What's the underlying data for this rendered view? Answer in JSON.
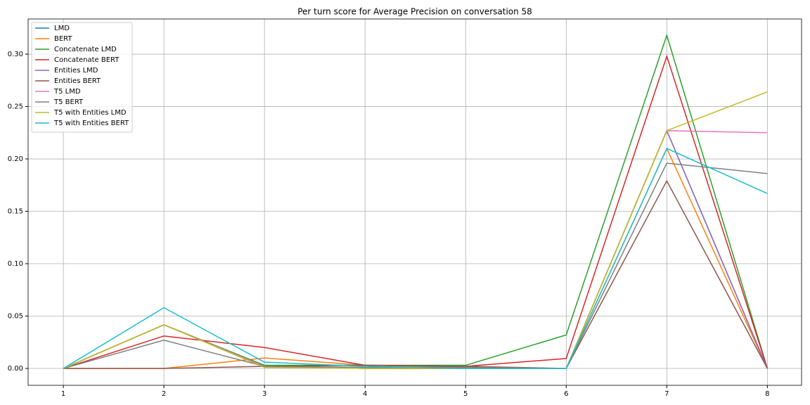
{
  "chart_data": {
    "type": "line",
    "title": "Per turn score for Average Precision on conversation 58",
    "x": [
      1,
      2,
      3,
      4,
      5,
      6,
      7,
      8
    ],
    "series": [
      {
        "name": "LMD",
        "color": "#1f77b4",
        "values": [
          0,
          0.0417,
          0.002,
          0,
          0,
          0,
          0.227,
          0
        ]
      },
      {
        "name": "BERT",
        "color": "#ff7f0e",
        "values": [
          0,
          0,
          0.01,
          0.003,
          0.001,
          0,
          0.21,
          0
        ]
      },
      {
        "name": "Concatenate LMD",
        "color": "#2ca02c",
        "values": [
          0,
          0.0417,
          0.003,
          0.003,
          0.003,
          0.032,
          0.318,
          0
        ]
      },
      {
        "name": "Concatenate BERT",
        "color": "#d62728",
        "values": [
          0,
          0.031,
          0.02,
          0.003,
          0.002,
          0.0095,
          0.298,
          0
        ]
      },
      {
        "name": "Entities LMD",
        "color": "#9467bd",
        "values": [
          0,
          0.0417,
          0.002,
          0,
          0,
          0,
          0.227,
          0
        ]
      },
      {
        "name": "Entities BERT",
        "color": "#8c564b",
        "values": [
          0,
          0,
          0.002,
          0.003,
          0.002,
          0,
          0.179,
          0
        ]
      },
      {
        "name": "T5 LMD",
        "color": "#e377c2",
        "values": [
          0,
          0.0417,
          0.002,
          0,
          0,
          0,
          0.227,
          0.225
        ]
      },
      {
        "name": "T5 BERT",
        "color": "#7f7f7f",
        "values": [
          0,
          0.027,
          0.002,
          0.001,
          0.001,
          0,
          0.196,
          0.186
        ]
      },
      {
        "name": "T5 with Entities LMD",
        "color": "#bcbd22",
        "values": [
          0,
          0.0417,
          0.001,
          0,
          0,
          0,
          0.227,
          0.264
        ]
      },
      {
        "name": "T5 with Entities BERT",
        "color": "#17becf",
        "values": [
          0,
          0.058,
          0.006,
          0.002,
          0,
          0,
          0.21,
          0.167
        ]
      }
    ],
    "xlim": [
      0.65,
      8.34
    ],
    "xticks": [
      1,
      2,
      3,
      4,
      5,
      6,
      7,
      8
    ],
    "ylim": [
      -0.0161,
      0.3336
    ],
    "yticks": [
      {
        "value": 0,
        "label": "0.00"
      },
      0.05,
      {
        "value": 0.1,
        "label": "0.10"
      },
      0.15,
      {
        "value": 0.2,
        "label": "0.20"
      },
      0.25,
      {
        "value": 0.3,
        "label": "0.30"
      }
    ],
    "grid": true,
    "legend": "upper-left"
  }
}
